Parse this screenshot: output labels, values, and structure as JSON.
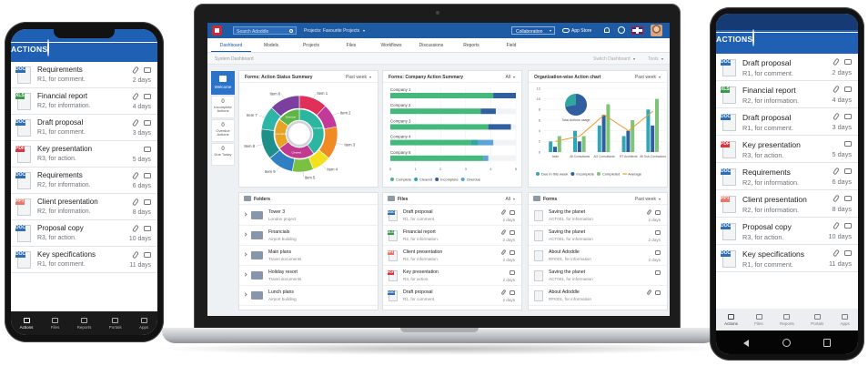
{
  "badge_colors": {
    "DOC": "#2f6db5",
    "XLS": "#3a9a4a",
    "PDF": "#d9363e",
    "PPT": "#e8776b"
  },
  "left_phone": {
    "header": "ACTIONS",
    "items": [
      {
        "badge": "DOC",
        "title": "Requirements",
        "subtitle": "R1, for comment.",
        "due": "2 days",
        "attachment": true
      },
      {
        "badge": "XLS",
        "title": "Financial report",
        "subtitle": "R2, for information.",
        "due": "4 days",
        "attachment": true
      },
      {
        "badge": "DOC",
        "title": "Draft proposal",
        "subtitle": "R1, for comment.",
        "due": "3 days",
        "attachment": true
      },
      {
        "badge": "PDF",
        "title": "Key presentation",
        "subtitle": "R3, for action.",
        "due": "5 days",
        "attachment": false
      },
      {
        "badge": "DOC",
        "title": "Requirements",
        "subtitle": "R2, for information.",
        "due": "6 days",
        "attachment": true
      },
      {
        "badge": "PPT",
        "title": "Client presentation",
        "subtitle": "R2, for information.",
        "due": "8 days",
        "attachment": true
      },
      {
        "badge": "DOC",
        "title": "Proposal copy",
        "subtitle": "R3, for action.",
        "due": "10 days",
        "attachment": true
      },
      {
        "badge": "DOC",
        "title": "Key specifications",
        "subtitle": "R1, for comment.",
        "due": "11 days",
        "attachment": true
      }
    ],
    "nav": [
      "Actions",
      "Files",
      "Reports",
      "Portals",
      "Apps"
    ]
  },
  "right_phone": {
    "header": "ACTIONS",
    "items": [
      {
        "badge": "DOC",
        "title": "Draft proposal",
        "subtitle": "R1, for comment.",
        "due": "2 days",
        "attachment": true
      },
      {
        "badge": "XLS",
        "title": "Financial report",
        "subtitle": "R2, for information.",
        "due": "4 days",
        "attachment": true
      },
      {
        "badge": "DOC",
        "title": "Draft proposal",
        "subtitle": "R1, for comment.",
        "due": "3 days",
        "attachment": true
      },
      {
        "badge": "PDF",
        "title": "Key presentation",
        "subtitle": "R3, for action.",
        "due": "5 days",
        "attachment": false
      },
      {
        "badge": "DOC",
        "title": "Requirements",
        "subtitle": "R2, for information.",
        "due": "6 days",
        "attachment": true
      },
      {
        "badge": "PPT",
        "title": "Client presentation",
        "subtitle": "R2, for information.",
        "due": "8 days",
        "attachment": true
      },
      {
        "badge": "DOC",
        "title": "Proposal copy",
        "subtitle": "R3, for action.",
        "due": "10 days",
        "attachment": true
      },
      {
        "badge": "DOC",
        "title": "Key specifications",
        "subtitle": "R1, for comment.",
        "due": "11 days",
        "attachment": true
      }
    ],
    "nav": [
      "Actions",
      "Files",
      "Reports",
      "Portals",
      "Apps"
    ]
  },
  "laptop": {
    "topbar": {
      "search": "Search Adoddle",
      "project": "Projects: Favourite Projects",
      "collaboration": "Collaboration",
      "app_store": "App Store"
    },
    "tabs": [
      "Dashboard",
      "Models",
      "Projects",
      "Files",
      "Workflows",
      "Discussions",
      "Reports",
      "Field"
    ],
    "subbar": {
      "title": "System Dashboard",
      "switch": "Switch Dashboard",
      "tools": "Tools"
    },
    "sidebar": {
      "welcome": "Welcome",
      "counters": [
        {
          "value": 0,
          "label": "Incomplete Actions"
        },
        {
          "value": 0,
          "label": "Overdue Actions"
        },
        {
          "value": 0,
          "label": "Due Today"
        }
      ]
    },
    "folders": {
      "title": "Folders",
      "items": [
        {
          "name": "Tower 3",
          "sub": "London project"
        },
        {
          "name": "Financials",
          "sub": "Airport building"
        },
        {
          "name": "Main plans",
          "sub": "Travel documents"
        },
        {
          "name": "Holiday resort",
          "sub": "Travel documents"
        },
        {
          "name": "Lunch plans",
          "sub": "Airport building"
        }
      ]
    },
    "files": {
      "title": "Files",
      "filter": "All",
      "items": [
        {
          "badge": "DOC",
          "name": "Draft proposal",
          "sub": "R1, for comment.",
          "due": "2 days",
          "attachment": true
        },
        {
          "badge": "XLS",
          "name": "Financial report",
          "sub": "R2, for information.",
          "due": "2 days",
          "attachment": true
        },
        {
          "badge": "PPT",
          "name": "Client presentation",
          "sub": "R2, for information.",
          "due": "2 days",
          "attachment": true
        },
        {
          "badge": "PDF",
          "name": "Key presentation",
          "sub": "R3, for action.",
          "due": "2 days",
          "attachment": false
        },
        {
          "badge": "DOC",
          "name": "Draft proposal",
          "sub": "R1, for comment.",
          "due": "2 days",
          "attachment": true
        }
      ]
    },
    "forms": {
      "title": "Forms",
      "filter": "Past week",
      "items": [
        {
          "name": "Saving the planet",
          "sub": "ACT001, for information",
          "due": "2 days",
          "attachment": true
        },
        {
          "name": "Saving the planet",
          "sub": "ACT001, for information",
          "due": "2 days",
          "attachment": false
        },
        {
          "name": "About Adoddle",
          "sub": "RFI001, for information",
          "due": "2 days",
          "attachment": false
        },
        {
          "name": "Saving the planet",
          "sub": "ACT001, for information",
          "attachment": false
        },
        {
          "name": "About Adoddle",
          "sub": "RFI001, for information",
          "attachment": true
        }
      ]
    }
  },
  "chart_data": [
    {
      "type": "sunburst",
      "title": "Forms: Action Status Summary",
      "filter": "Past week",
      "inner": {
        "categories": [
          "Complete",
          "Cleared",
          "Incomplete",
          "Overdue"
        ],
        "values": [
          40,
          25,
          20,
          15
        ],
        "colors": [
          "#2cb5a0",
          "#c13a8f",
          "#e8a325",
          "#5fb548"
        ]
      },
      "outer": {
        "categories": [
          "Item 1",
          "Item 2",
          "Item 3",
          "Item 4",
          "Item 5",
          "Item 9",
          "Item 8",
          "Item 7",
          "Item 6"
        ],
        "values": [
          12,
          10,
          14,
          8,
          9,
          11,
          13,
          10,
          13
        ],
        "colors": [
          "#e0305a",
          "#c3399a",
          "#f08a24",
          "#f3e21b",
          "#7ac142",
          "#2f7fc1",
          "#1f8f8a",
          "#2fb5a8",
          "#7b3fa0"
        ]
      }
    },
    {
      "type": "bar",
      "orientation": "horizontal",
      "stacked": true,
      "title": "Forms: Company Action Summary",
      "filter": "All",
      "categories": [
        "Company 1",
        "Company 2",
        "Company 3",
        "Company 4",
        "Company 5"
      ],
      "series": [
        {
          "name": "Complete",
          "color": "#45b97c",
          "values": [
            4.1,
            3.6,
            3.9,
            3.2,
            3.7
          ]
        },
        {
          "name": "Cleared",
          "color": "#2fa7a0",
          "values": [
            0,
            0,
            0,
            0.3,
            0
          ]
        },
        {
          "name": "Incomplete",
          "color": "#2f5f9e",
          "values": [
            0.9,
            0.6,
            0.9,
            0,
            0
          ]
        },
        {
          "name": "Overdue",
          "color": "#5ba4d8",
          "values": [
            0,
            0,
            0,
            0.6,
            0.2
          ]
        }
      ],
      "xlim": [
        0,
        5
      ],
      "xticks": [
        0,
        1,
        2,
        3,
        4,
        5
      ],
      "grid": true
    },
    {
      "type": "bar",
      "orientation": "vertical",
      "title": "Organization-wise Action chart",
      "filter": "Past week",
      "categories": [
        "Asite",
        "All Consultants",
        "AG Consultants",
        "RT Architects",
        "All Sub-Contractors"
      ],
      "series": [
        {
          "name": "Due in this week",
          "color": "#2fa7b8",
          "values": [
            2,
            4,
            5,
            3,
            8
          ]
        },
        {
          "name": "Incomplete",
          "color": "#2f5f9e",
          "values": [
            1,
            2,
            7,
            4,
            5
          ]
        },
        {
          "name": "Completed",
          "color": "#7cc576",
          "values": [
            3,
            3,
            9,
            6,
            10
          ]
        },
        {
          "name": "Average",
          "color": "#f29a2e",
          "type": "line",
          "values": [
            2,
            3,
            7,
            4,
            7.7
          ]
        }
      ],
      "ylim": [
        0,
        12
      ],
      "yticks": [
        0,
        2,
        4,
        6,
        8,
        10,
        12
      ],
      "grid": true,
      "inset": {
        "title": "Total Actions usage",
        "values": [
          72,
          28
        ],
        "colors": [
          "#2f5f9e",
          "#2fa7a0"
        ]
      }
    }
  ]
}
